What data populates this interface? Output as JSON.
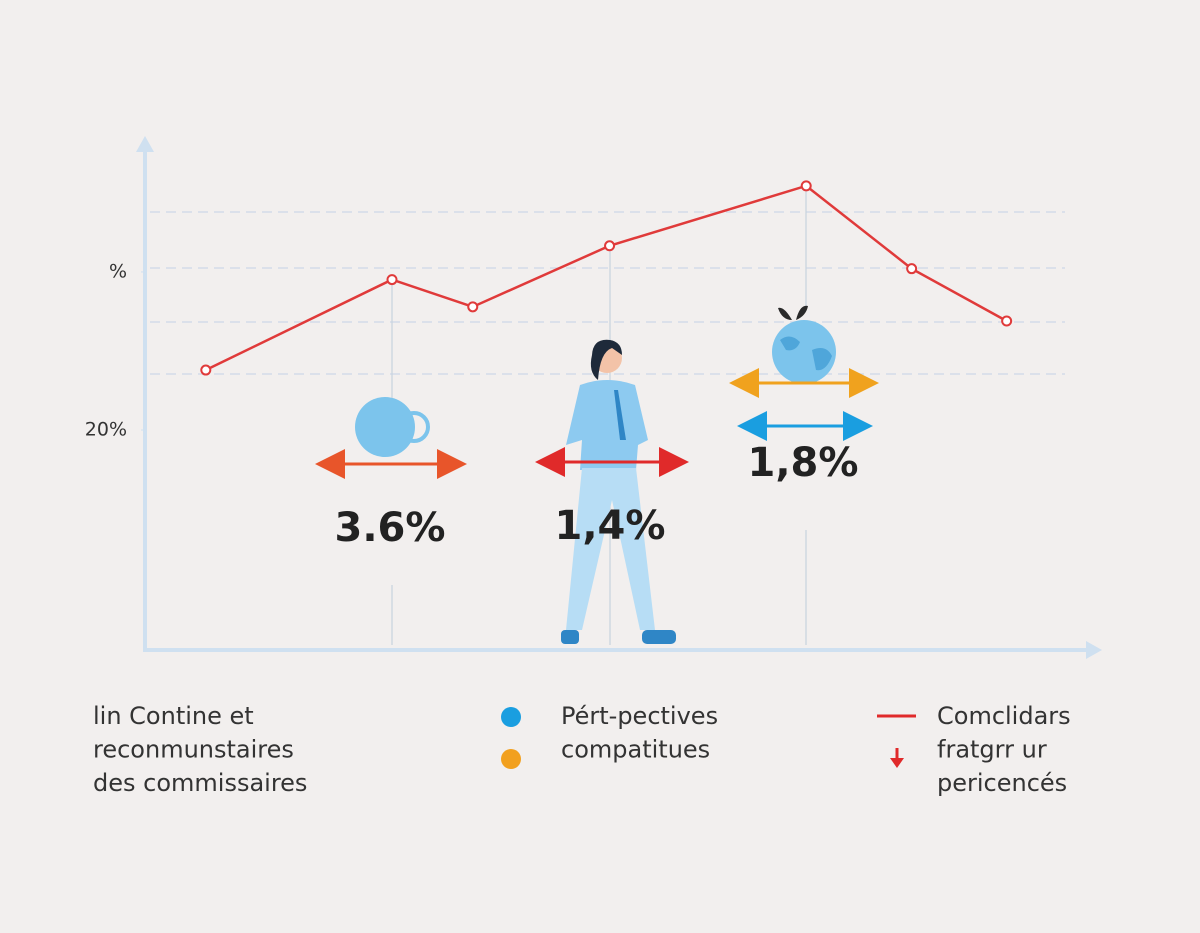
{
  "chart_data": {
    "type": "line",
    "x": [
      6.4,
      26,
      34.5,
      48.9,
      69.6,
      80.7,
      90.7
    ],
    "series": [
      {
        "color": "#e03a3a",
        "values": [
          25.5,
          33.8,
          31.3,
          36.9,
          42.4,
          34.8,
          30.0
        ]
      }
    ],
    "xlim": [
      0,
      100
    ],
    "ylim": [
      0,
      46
    ],
    "yticks": [
      {
        "value": 34.5,
        "label": "%"
      },
      {
        "value": 20,
        "label": "20%"
      }
    ],
    "annotations": [
      "3.6%",
      "1,4%",
      "1,8%"
    ],
    "legend_items": [
      {
        "lines": [
          "lin Contine et",
          "reconmunstaires",
          "des commissaires"
        ]
      },
      {
        "lines": [
          "Pért-pectives",
          "compatitues"
        ]
      },
      {
        "lines": [
          "Comclidars",
          "fratgrr ur",
          "pericencés"
        ]
      }
    ]
  }
}
